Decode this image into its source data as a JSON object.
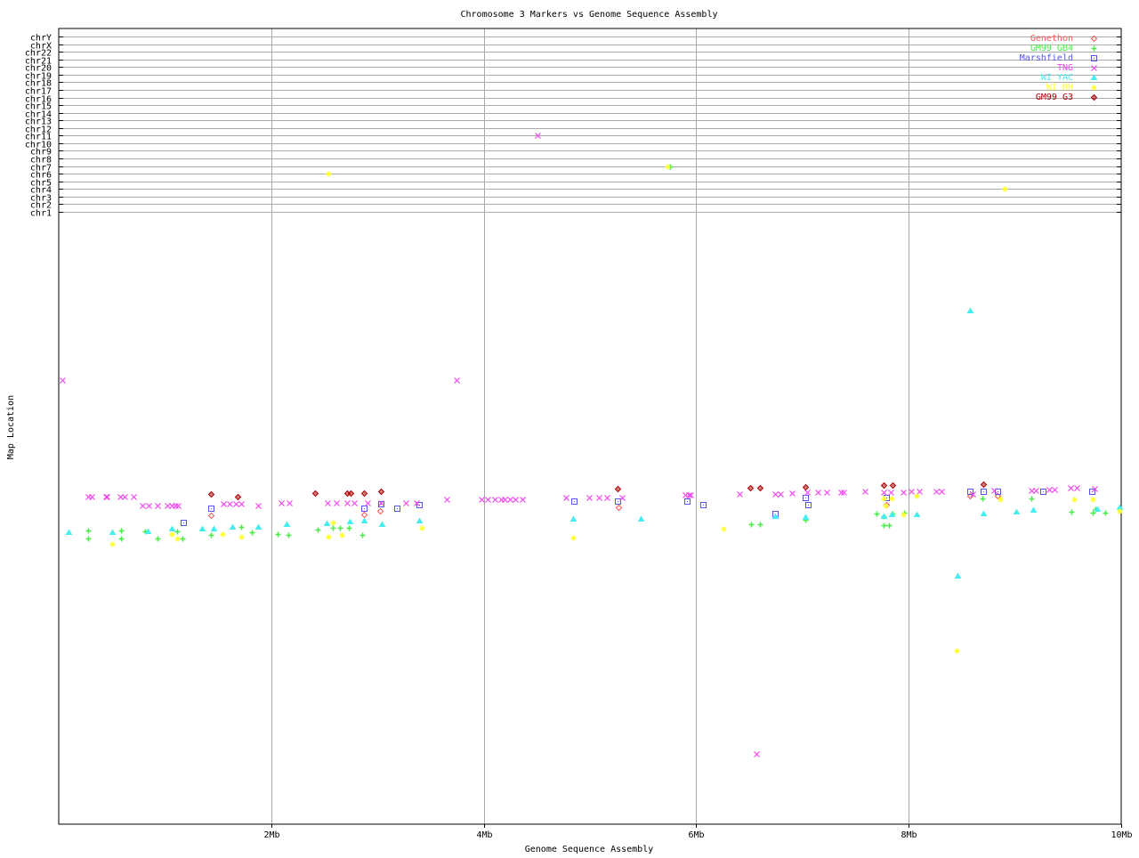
{
  "chart_data": {
    "type": "scatter",
    "title": "Chromosome 3 Markers vs Genome Sequence Assembly",
    "xlabel": "Genome Sequence Assembly",
    "ylabel": "Map Location",
    "xlim": [
      0,
      10
    ],
    "x_unit": "Mb",
    "x_ticks": [
      "2Mb",
      "4Mb",
      "6Mb",
      "8Mb",
      "10Mb"
    ],
    "x_tick_values": [
      2,
      4,
      6,
      8,
      10
    ],
    "ylim_map": [
      0,
      100
    ],
    "chromosomes": [
      "chr1",
      "chr2",
      "chr3",
      "chr4",
      "chr5",
      "chr6",
      "chr7",
      "chr8",
      "chr9",
      "chr10",
      "chr11",
      "chr12",
      "chr13",
      "chr14",
      "chr15",
      "chr16",
      "chr17",
      "chr18",
      "chr19",
      "chr20",
      "chr21",
      "chr22",
      "chrX",
      "chrY"
    ],
    "grid": true,
    "legend_position": "top-right",
    "series": [
      {
        "name": "Genethon",
        "color": "#ff5555",
        "marker": "diamond",
        "points": [
          [
            1.43,
            49.0
          ],
          [
            2.87,
            48.9
          ],
          [
            3.02,
            48.3
          ],
          [
            5.27,
            47.7
          ],
          [
            7.79,
            47.3
          ],
          [
            8.58,
            45.8
          ],
          [
            8.84,
            45.8
          ]
        ],
        "chrom_points": []
      },
      {
        "name": "GM99 GB4",
        "color": "#44ee44",
        "marker": "plus",
        "points": [
          [
            0.28,
            51.5
          ],
          [
            0.28,
            52.8
          ],
          [
            0.59,
            51.5
          ],
          [
            0.59,
            52.8
          ],
          [
            0.81,
            51.7
          ],
          [
            0.93,
            52.8
          ],
          [
            1.11,
            51.7
          ],
          [
            1.16,
            52.8
          ],
          [
            1.43,
            52.3
          ],
          [
            1.72,
            50.9
          ],
          [
            1.82,
            51.8
          ],
          [
            2.06,
            52.1
          ],
          [
            2.16,
            52.3
          ],
          [
            2.44,
            51.4
          ],
          [
            2.58,
            51.1
          ],
          [
            2.65,
            51.1
          ],
          [
            2.73,
            51.1
          ],
          [
            2.86,
            52.3
          ],
          [
            6.52,
            50.5
          ],
          [
            6.6,
            50.5
          ],
          [
            7.03,
            49.8
          ],
          [
            7.7,
            48.7
          ],
          [
            7.76,
            50.6
          ],
          [
            7.81,
            50.6
          ],
          [
            7.76,
            49.2
          ],
          [
            7.85,
            48.7
          ],
          [
            7.96,
            48.6
          ],
          [
            8.69,
            46.2
          ],
          [
            9.15,
            46.2
          ],
          [
            9.53,
            48.4
          ],
          [
            9.73,
            48.6
          ],
          [
            9.76,
            48.0
          ],
          [
            9.85,
            48.6
          ]
        ],
        "chrom_points": [
          {
            "chr": "chr7",
            "x": 5.75
          }
        ]
      },
      {
        "name": "Marshfield",
        "color": "#5555ee",
        "marker": "square",
        "points": [
          [
            1.17,
            50.2
          ],
          [
            1.43,
            47.9
          ],
          [
            2.87,
            47.9
          ],
          [
            3.03,
            47.1
          ],
          [
            3.18,
            47.9
          ],
          [
            3.39,
            47.3
          ],
          [
            4.85,
            46.7
          ],
          [
            5.26,
            46.7
          ],
          [
            5.91,
            46.7
          ],
          [
            6.06,
            47.3
          ],
          [
            6.74,
            48.7
          ],
          [
            7.03,
            46.1
          ],
          [
            7.05,
            47.3
          ],
          [
            7.79,
            46.1
          ],
          [
            8.58,
            45.1
          ],
          [
            8.7,
            45.1
          ],
          [
            8.84,
            45.1
          ],
          [
            9.26,
            45.1
          ],
          [
            9.72,
            45.1
          ]
        ],
        "chrom_points": []
      },
      {
        "name": "TNG",
        "color": "#ee44ee",
        "marker": "x",
        "points": [
          [
            0.03,
            26.7
          ],
          [
            3.74,
            26.7
          ],
          [
            0.28,
            46.0
          ],
          [
            0.31,
            46.0
          ],
          [
            0.44,
            46.0
          ],
          [
            0.45,
            46.0
          ],
          [
            0.58,
            46.0
          ],
          [
            0.62,
            46.0
          ],
          [
            0.7,
            46.0
          ],
          [
            0.79,
            47.4
          ],
          [
            0.85,
            47.4
          ],
          [
            0.93,
            47.4
          ],
          [
            1.02,
            47.4
          ],
          [
            1.06,
            47.4
          ],
          [
            1.1,
            47.4
          ],
          [
            1.12,
            47.4
          ],
          [
            1.55,
            47.1
          ],
          [
            1.61,
            47.1
          ],
          [
            1.67,
            47.1
          ],
          [
            1.72,
            47.1
          ],
          [
            1.88,
            47.4
          ],
          [
            2.09,
            47.0
          ],
          [
            2.17,
            47.0
          ],
          [
            2.53,
            47.0
          ],
          [
            2.61,
            47.0
          ],
          [
            2.71,
            47.0
          ],
          [
            2.78,
            47.0
          ],
          [
            2.91,
            47.0
          ],
          [
            3.03,
            47.0
          ],
          [
            3.27,
            47.0
          ],
          [
            3.37,
            47.0
          ],
          [
            3.65,
            46.4
          ],
          [
            3.98,
            46.4
          ],
          [
            4.04,
            46.4
          ],
          [
            4.1,
            46.4
          ],
          [
            4.16,
            46.4
          ],
          [
            4.2,
            46.4
          ],
          [
            4.25,
            46.4
          ],
          [
            4.3,
            46.4
          ],
          [
            4.36,
            46.4
          ],
          [
            4.77,
            46.1
          ],
          [
            4.99,
            46.1
          ],
          [
            5.08,
            46.1
          ],
          [
            5.16,
            46.1
          ],
          [
            5.3,
            46.1
          ],
          [
            5.9,
            45.7
          ],
          [
            5.93,
            45.7
          ],
          [
            5.95,
            45.7
          ],
          [
            6.41,
            45.5
          ],
          [
            6.74,
            45.5
          ],
          [
            6.79,
            45.5
          ],
          [
            6.9,
            45.4
          ],
          [
            7.04,
            45.2
          ],
          [
            7.14,
            45.2
          ],
          [
            7.23,
            45.2
          ],
          [
            7.36,
            45.2
          ],
          [
            7.39,
            45.2
          ],
          [
            7.59,
            45.1
          ],
          [
            7.76,
            45.2
          ],
          [
            7.83,
            45.2
          ],
          [
            7.95,
            45.2
          ],
          [
            8.02,
            45.1
          ],
          [
            8.1,
            45.1
          ],
          [
            8.26,
            45.1
          ],
          [
            8.31,
            45.1
          ],
          [
            8.6,
            45.5
          ],
          [
            8.8,
            44.9
          ],
          [
            9.15,
            44.9
          ],
          [
            9.2,
            44.9
          ],
          [
            9.32,
            44.8
          ],
          [
            9.37,
            44.8
          ],
          [
            9.52,
            44.5
          ],
          [
            9.58,
            44.5
          ],
          [
            9.75,
            44.6
          ],
          [
            6.57,
            88.4
          ]
        ],
        "chrom_points": [
          {
            "chr": "chr11",
            "x": 4.51
          }
        ]
      },
      {
        "name": "WI YAC",
        "color": "#44eeee",
        "marker": "triangle",
        "points": [
          [
            0.09,
            51.8
          ],
          [
            0.5,
            51.8
          ],
          [
            0.84,
            51.7
          ],
          [
            1.06,
            51.2
          ],
          [
            1.35,
            51.2
          ],
          [
            1.46,
            51.2
          ],
          [
            1.63,
            50.9
          ],
          [
            1.88,
            50.9
          ],
          [
            2.14,
            50.5
          ],
          [
            2.52,
            50.3
          ],
          [
            2.74,
            50.0
          ],
          [
            2.87,
            49.9
          ],
          [
            3.04,
            50.5
          ],
          [
            3.39,
            49.9
          ],
          [
            4.84,
            49.6
          ],
          [
            5.48,
            49.6
          ],
          [
            6.74,
            49.2
          ],
          [
            7.03,
            49.3
          ],
          [
            7.76,
            49.2
          ],
          [
            7.84,
            48.9
          ],
          [
            8.07,
            48.9
          ],
          [
            8.46,
            59.0
          ],
          [
            8.58,
            15.3
          ],
          [
            8.7,
            48.7
          ],
          [
            9.01,
            48.4
          ],
          [
            9.17,
            48.1
          ],
          [
            9.77,
            48.0
          ],
          [
            9.98,
            47.7
          ]
        ],
        "chrom_points": []
      },
      {
        "name": "WI RH",
        "color": "#ffff33",
        "marker": "asterisk",
        "points": [
          [
            0.5,
            53.7
          ],
          [
            1.06,
            52.1
          ],
          [
            1.11,
            52.8
          ],
          [
            1.54,
            52.1
          ],
          [
            1.72,
            52.6
          ],
          [
            2.54,
            52.6
          ],
          [
            2.58,
            50.2
          ],
          [
            2.66,
            52.3
          ],
          [
            3.42,
            51.1
          ],
          [
            4.84,
            52.7
          ],
          [
            6.26,
            51.2
          ],
          [
            7.76,
            46.2
          ],
          [
            7.84,
            46.2
          ],
          [
            7.78,
            47.4
          ],
          [
            7.95,
            48.9
          ],
          [
            8.07,
            45.8
          ],
          [
            8.45,
            71.3
          ],
          [
            8.86,
            46.4
          ],
          [
            9.56,
            46.4
          ],
          [
            9.73,
            46.4
          ],
          [
            9.98,
            48.3
          ]
        ],
        "chrom_points": [
          {
            "chr": "chr6",
            "x": 2.54
          },
          {
            "chr": "chr7",
            "x": 5.73
          },
          {
            "chr": "chr4",
            "x": 8.9
          }
        ]
      },
      {
        "name": "GM99 G3",
        "color": "#aa0000",
        "marker": "diamond-dark",
        "points": [
          [
            1.43,
            45.5
          ],
          [
            1.68,
            46.0
          ],
          [
            2.41,
            45.4
          ],
          [
            2.71,
            45.4
          ],
          [
            2.75,
            45.4
          ],
          [
            2.87,
            45.4
          ],
          [
            3.03,
            45.1
          ],
          [
            5.26,
            44.6
          ],
          [
            6.51,
            44.5
          ],
          [
            6.6,
            44.5
          ],
          [
            7.03,
            44.3
          ],
          [
            7.76,
            44.1
          ],
          [
            7.85,
            44.1
          ],
          [
            8.7,
            43.9
          ]
        ],
        "chrom_points": []
      }
    ]
  }
}
